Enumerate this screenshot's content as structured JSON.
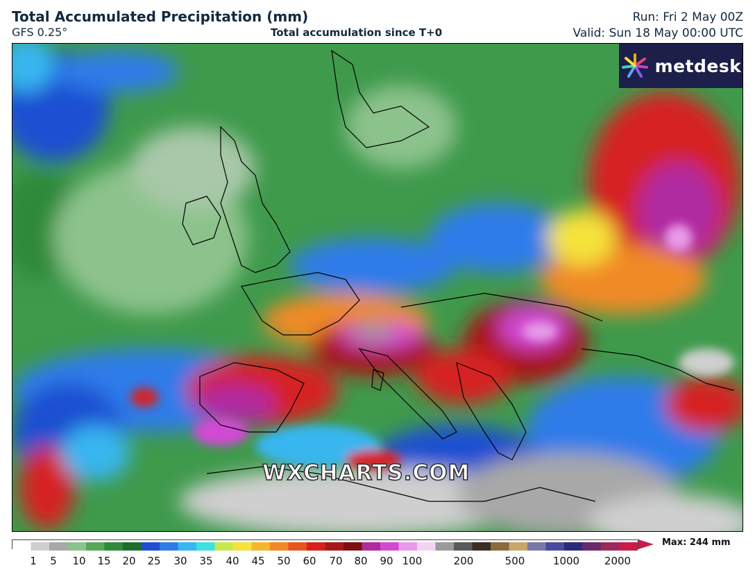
{
  "header": {
    "title": "Total Accumulated Precipitation (mm)",
    "model": "GFS 0.25°",
    "accumulation": "Total accumulation since T+0",
    "run": "Run: Fri 2 May 00Z",
    "valid": "Valid: Sun 18 May 00:00 UTC"
  },
  "logo": {
    "text": "metdesk",
    "icon": "metdesk-star-icon"
  },
  "watermark": "WXCHARTS.COM",
  "colorbar": {
    "max_label": "Max: 244 mm",
    "ticks": [
      "1",
      "5",
      "10",
      "15",
      "20",
      "25",
      "30",
      "35",
      "40",
      "45",
      "50",
      "60",
      "70",
      "80",
      "90",
      "100",
      "200",
      "500",
      "1000",
      "2000"
    ],
    "colors": [
      "#ffffff",
      "#cfcfcf",
      "#a8a8a8",
      "#8cc28c",
      "#56a857",
      "#2f8a3a",
      "#1f6e2c",
      "#1e4fd1",
      "#2f7bea",
      "#37b6f0",
      "#3fe0e0",
      "#c8e84a",
      "#f5e23a",
      "#f5b52d",
      "#f08a26",
      "#e8531f",
      "#d62020",
      "#a81818",
      "#7a1010",
      "#b02aa0",
      "#d24ad4",
      "#e89ae8",
      "#f3d3f3",
      "#9a9a9a",
      "#5a5a5a",
      "#3a2e24",
      "#8a6a3e",
      "#c6a66a",
      "#7a7aa8",
      "#4a4a9e",
      "#2a2a7a",
      "#6a2a6a",
      "#9a2a5a",
      "#c81d4a"
    ],
    "arrow_color": "#c81d4a"
  }
}
